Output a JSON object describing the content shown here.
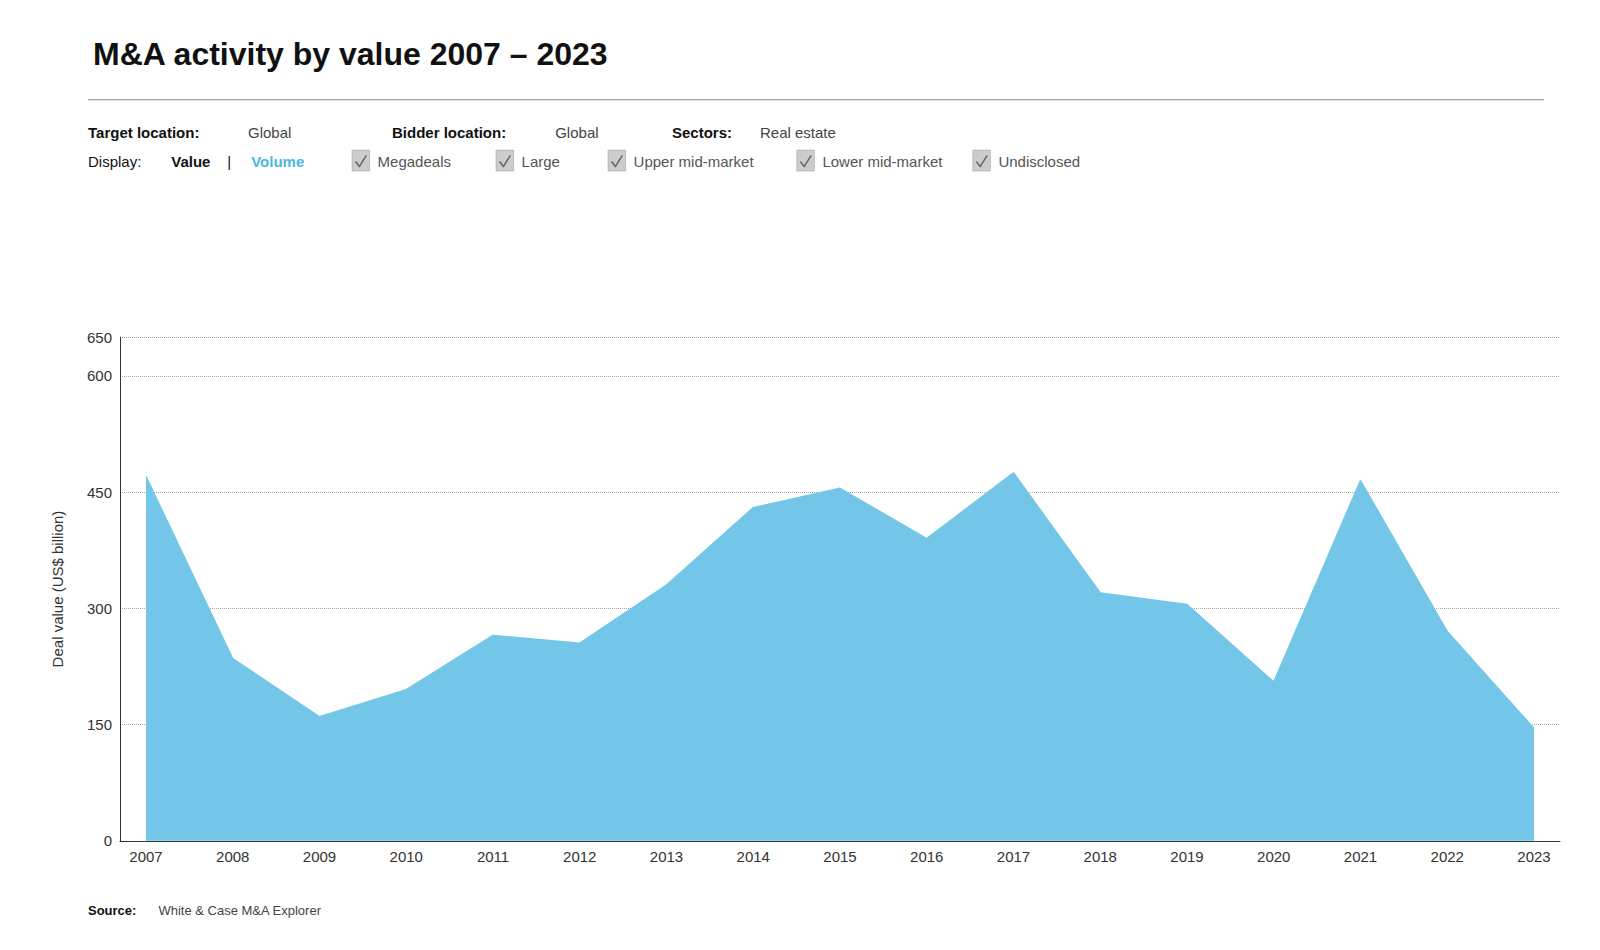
{
  "chart_data": {
    "type": "area",
    "title": "M&A activity by value 2007 – 2023",
    "ylabel": "Deal value (US$ billion)",
    "x": [
      2007,
      2008,
      2009,
      2010,
      2011,
      2012,
      2013,
      2014,
      2015,
      2016,
      2017,
      2018,
      2019,
      2020,
      2021,
      2022,
      2023
    ],
    "values": [
      470,
      235,
      160,
      195,
      265,
      255,
      330,
      430,
      455,
      390,
      475,
      320,
      305,
      205,
      465,
      270,
      145
    ],
    "color": "#73C6E7",
    "xlim": [
      2006.7,
      2023.3
    ],
    "xticks": [
      2007,
      2008,
      2009,
      2010,
      2011,
      2012,
      2013,
      2014,
      2015,
      2016,
      2017,
      2018,
      2019,
      2020,
      2021,
      2022,
      2023
    ],
    "ylim": [
      0,
      650
    ],
    "yticks": [
      0,
      150,
      300,
      450,
      600
    ],
    "grid": true,
    "annotations": [
      "Target location:",
      "Global",
      "Bidder location:",
      "Global",
      "Sectors:",
      "Real estate",
      "Display:",
      "Value",
      "|",
      "Volume",
      "Megadeals",
      "Large",
      "Upper mid-market",
      "Lower mid-market",
      "Undisclosed",
      "Source:",
      "White & Case M&A Explorer"
    ]
  }
}
